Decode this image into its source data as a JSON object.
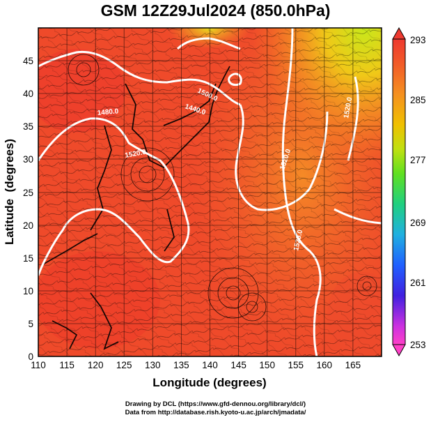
{
  "title": "GSM 12Z29Jul2024 (850.0hPa)",
  "x_axis": {
    "label": "Longitude (degrees)",
    "ticks": [
      "110",
      "115",
      "120",
      "125",
      "130",
      "135",
      "140",
      "145",
      "150",
      "155",
      "160",
      "165"
    ],
    "range": [
      110,
      170
    ]
  },
  "y_axis": {
    "label": "Latitude  (degrees)",
    "ticks": [
      "0",
      "5",
      "10",
      "15",
      "20",
      "25",
      "30",
      "35",
      "40",
      "45"
    ],
    "range": [
      0,
      50
    ]
  },
  "colorbar": {
    "labels": [
      "293",
      "285",
      "277",
      "269",
      "261",
      "253"
    ],
    "range": [
      253,
      293
    ]
  },
  "contour_labels": [
    {
      "text": "1500.0",
      "lon": 142.5,
      "lat": 41.5
    },
    {
      "text": "1440.0",
      "lon": 140.5,
      "lat": 39.5
    },
    {
      "text": "1480.0",
      "lon": 119,
      "lat": 38.5
    },
    {
      "text": "1520.0",
      "lon": 126,
      "lat": 29
    },
    {
      "text": "1520.0",
      "lon": 155,
      "lat": 28
    },
    {
      "text": "1520.0",
      "lon": 157,
      "lat": 18
    },
    {
      "text": "1520.0",
      "lon": 162,
      "lat": 38
    }
  ],
  "colors": {
    "warm_field": "#f0402a",
    "mid_field": "#f57a22",
    "contour": "#ffffff",
    "coast": "#000000"
  },
  "credits": [
    "Drawing by DCL (https://www.gfd-dennou.org/library/dcl/)",
    "Data from http://database.rish.kyoto-u.ac.jp/arch/jmadata/"
  ]
}
